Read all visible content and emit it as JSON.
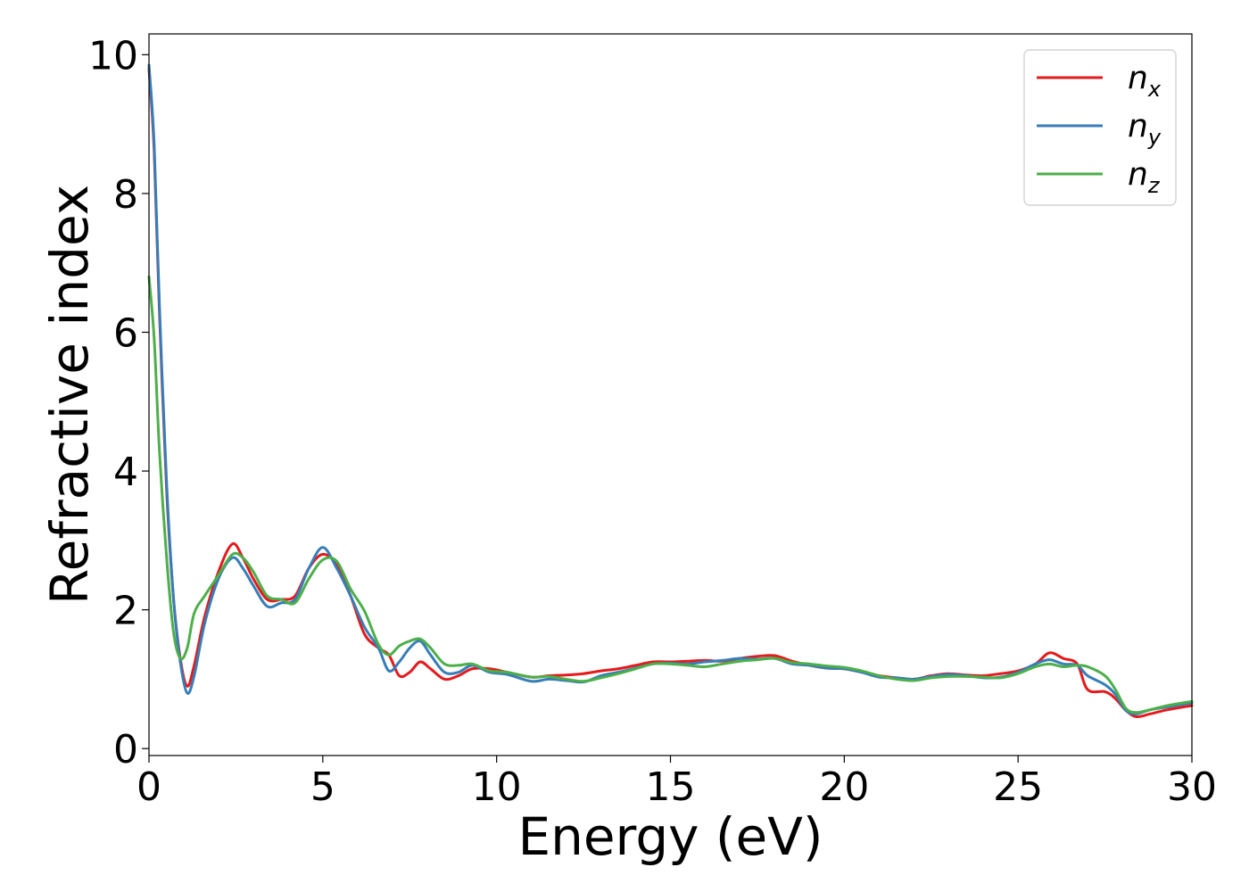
{
  "chart_data": {
    "type": "line",
    "xlabel": "Energy (eV)",
    "ylabel": "Refractive index",
    "xlim": [
      0,
      30
    ],
    "ylim": [
      -0.1,
      10.3
    ],
    "xticks": [
      0,
      5,
      10,
      15,
      20,
      25,
      30
    ],
    "xtick_labels": [
      "0",
      "5",
      "10",
      "15",
      "20",
      "25",
      "30"
    ],
    "yticks": [
      0,
      2,
      4,
      6,
      8,
      10
    ],
    "ytick_labels": [
      "0",
      "2",
      "4",
      "6",
      "8",
      "10"
    ],
    "grid": false,
    "legend_position": "top-right",
    "series": [
      {
        "name": "n_x",
        "label_base": "n",
        "label_sub": "x",
        "color": "#e41a1c",
        "points": [
          [
            0,
            9.8
          ],
          [
            0.15,
            8.6
          ],
          [
            0.3,
            6.3
          ],
          [
            0.5,
            3.8
          ],
          [
            0.7,
            2.2
          ],
          [
            0.9,
            1.3
          ],
          [
            1.1,
            0.9
          ],
          [
            1.3,
            1.2
          ],
          [
            1.6,
            1.9
          ],
          [
            2.0,
            2.55
          ],
          [
            2.4,
            2.95
          ],
          [
            2.7,
            2.75
          ],
          [
            3.0,
            2.45
          ],
          [
            3.4,
            2.15
          ],
          [
            3.8,
            2.15
          ],
          [
            4.2,
            2.2
          ],
          [
            4.6,
            2.6
          ],
          [
            5.0,
            2.8
          ],
          [
            5.4,
            2.65
          ],
          [
            5.8,
            2.2
          ],
          [
            6.2,
            1.65
          ],
          [
            6.6,
            1.45
          ],
          [
            6.9,
            1.35
          ],
          [
            7.2,
            1.05
          ],
          [
            7.5,
            1.1
          ],
          [
            7.8,
            1.25
          ],
          [
            8.1,
            1.15
          ],
          [
            8.5,
            1.0
          ],
          [
            8.9,
            1.05
          ],
          [
            9.3,
            1.15
          ],
          [
            9.8,
            1.15
          ],
          [
            10.3,
            1.1
          ],
          [
            11.0,
            1.03
          ],
          [
            11.5,
            1.05
          ],
          [
            12.0,
            1.06
          ],
          [
            12.5,
            1.08
          ],
          [
            13.0,
            1.12
          ],
          [
            13.5,
            1.15
          ],
          [
            14.0,
            1.2
          ],
          [
            14.5,
            1.25
          ],
          [
            15.0,
            1.25
          ],
          [
            15.5,
            1.26
          ],
          [
            16.0,
            1.27
          ],
          [
            16.5,
            1.26
          ],
          [
            17.0,
            1.3
          ],
          [
            17.5,
            1.33
          ],
          [
            18.0,
            1.34
          ],
          [
            18.5,
            1.26
          ],
          [
            19.0,
            1.2
          ],
          [
            19.5,
            1.16
          ],
          [
            20.0,
            1.15
          ],
          [
            20.5,
            1.1
          ],
          [
            21.0,
            1.05
          ],
          [
            21.5,
            1.02
          ],
          [
            22.0,
            1.0
          ],
          [
            22.5,
            1.05
          ],
          [
            23.0,
            1.08
          ],
          [
            23.5,
            1.06
          ],
          [
            24.0,
            1.05
          ],
          [
            24.5,
            1.08
          ],
          [
            25.0,
            1.12
          ],
          [
            25.5,
            1.22
          ],
          [
            25.9,
            1.38
          ],
          [
            26.3,
            1.3
          ],
          [
            26.7,
            1.22
          ],
          [
            27.0,
            0.85
          ],
          [
            27.5,
            0.82
          ],
          [
            27.8,
            0.72
          ],
          [
            28.1,
            0.55
          ],
          [
            28.4,
            0.46
          ],
          [
            28.8,
            0.5
          ],
          [
            29.3,
            0.56
          ],
          [
            30.0,
            0.62
          ]
        ]
      },
      {
        "name": "n_y",
        "label_base": "n",
        "label_sub": "y",
        "color": "#377eb8",
        "points": [
          [
            0,
            9.85
          ],
          [
            0.15,
            8.7
          ],
          [
            0.3,
            6.4
          ],
          [
            0.5,
            3.9
          ],
          [
            0.7,
            2.2
          ],
          [
            0.9,
            1.25
          ],
          [
            1.1,
            0.8
          ],
          [
            1.3,
            1.05
          ],
          [
            1.6,
            1.8
          ],
          [
            2.0,
            2.45
          ],
          [
            2.4,
            2.75
          ],
          [
            2.7,
            2.6
          ],
          [
            3.0,
            2.35
          ],
          [
            3.4,
            2.05
          ],
          [
            3.8,
            2.1
          ],
          [
            4.2,
            2.15
          ],
          [
            4.6,
            2.6
          ],
          [
            5.0,
            2.9
          ],
          [
            5.4,
            2.6
          ],
          [
            5.8,
            2.2
          ],
          [
            6.2,
            1.75
          ],
          [
            6.6,
            1.45
          ],
          [
            6.9,
            1.12
          ],
          [
            7.2,
            1.25
          ],
          [
            7.5,
            1.45
          ],
          [
            7.8,
            1.55
          ],
          [
            8.1,
            1.35
          ],
          [
            8.5,
            1.1
          ],
          [
            8.9,
            1.1
          ],
          [
            9.3,
            1.2
          ],
          [
            9.8,
            1.1
          ],
          [
            10.3,
            1.07
          ],
          [
            11.0,
            0.97
          ],
          [
            11.5,
            1.0
          ],
          [
            12.0,
            0.98
          ],
          [
            12.5,
            0.96
          ],
          [
            13.0,
            1.05
          ],
          [
            13.5,
            1.1
          ],
          [
            14.0,
            1.16
          ],
          [
            14.5,
            1.22
          ],
          [
            15.0,
            1.23
          ],
          [
            15.5,
            1.22
          ],
          [
            16.0,
            1.25
          ],
          [
            16.5,
            1.27
          ],
          [
            17.0,
            1.3
          ],
          [
            17.5,
            1.29
          ],
          [
            18.0,
            1.3
          ],
          [
            18.5,
            1.22
          ],
          [
            19.0,
            1.2
          ],
          [
            19.5,
            1.16
          ],
          [
            20.0,
            1.15
          ],
          [
            20.5,
            1.1
          ],
          [
            21.0,
            1.03
          ],
          [
            21.5,
            1.02
          ],
          [
            22.0,
            1.0
          ],
          [
            22.5,
            1.04
          ],
          [
            23.0,
            1.07
          ],
          [
            23.5,
            1.05
          ],
          [
            24.0,
            1.02
          ],
          [
            24.5,
            1.03
          ],
          [
            25.0,
            1.1
          ],
          [
            25.5,
            1.22
          ],
          [
            25.9,
            1.28
          ],
          [
            26.3,
            1.22
          ],
          [
            26.7,
            1.2
          ],
          [
            27.0,
            1.05
          ],
          [
            27.5,
            0.92
          ],
          [
            27.8,
            0.78
          ],
          [
            28.1,
            0.55
          ],
          [
            28.4,
            0.5
          ],
          [
            28.8,
            0.56
          ],
          [
            29.3,
            0.6
          ],
          [
            30.0,
            0.66
          ]
        ]
      },
      {
        "name": "n_z",
        "label_base": "n",
        "label_sub": "z",
        "color": "#4daf4a",
        "points": [
          [
            0,
            6.8
          ],
          [
            0.15,
            5.9
          ],
          [
            0.3,
            4.3
          ],
          [
            0.5,
            2.8
          ],
          [
            0.7,
            1.7
          ],
          [
            0.9,
            1.3
          ],
          [
            1.1,
            1.45
          ],
          [
            1.3,
            1.95
          ],
          [
            1.6,
            2.2
          ],
          [
            2.0,
            2.5
          ],
          [
            2.4,
            2.8
          ],
          [
            2.7,
            2.75
          ],
          [
            3.0,
            2.55
          ],
          [
            3.4,
            2.2
          ],
          [
            3.8,
            2.15
          ],
          [
            4.2,
            2.1
          ],
          [
            4.6,
            2.45
          ],
          [
            5.0,
            2.72
          ],
          [
            5.4,
            2.7
          ],
          [
            5.8,
            2.3
          ],
          [
            6.2,
            1.98
          ],
          [
            6.6,
            1.5
          ],
          [
            6.9,
            1.35
          ],
          [
            7.2,
            1.48
          ],
          [
            7.5,
            1.55
          ],
          [
            7.8,
            1.58
          ],
          [
            8.1,
            1.45
          ],
          [
            8.5,
            1.22
          ],
          [
            8.9,
            1.2
          ],
          [
            9.3,
            1.22
          ],
          [
            9.8,
            1.12
          ],
          [
            10.3,
            1.1
          ],
          [
            11.0,
            1.03
          ],
          [
            11.5,
            1.04
          ],
          [
            12.0,
            1.0
          ],
          [
            12.5,
            0.97
          ],
          [
            13.0,
            1.02
          ],
          [
            13.5,
            1.08
          ],
          [
            14.0,
            1.15
          ],
          [
            14.5,
            1.22
          ],
          [
            15.0,
            1.22
          ],
          [
            15.5,
            1.2
          ],
          [
            16.0,
            1.18
          ],
          [
            16.5,
            1.22
          ],
          [
            17.0,
            1.26
          ],
          [
            17.5,
            1.28
          ],
          [
            18.0,
            1.3
          ],
          [
            18.5,
            1.24
          ],
          [
            19.0,
            1.22
          ],
          [
            19.5,
            1.19
          ],
          [
            20.0,
            1.17
          ],
          [
            20.5,
            1.12
          ],
          [
            21.0,
            1.05
          ],
          [
            21.5,
            1.0
          ],
          [
            22.0,
            0.98
          ],
          [
            22.5,
            1.02
          ],
          [
            23.0,
            1.04
          ],
          [
            23.5,
            1.04
          ],
          [
            24.0,
            1.03
          ],
          [
            24.5,
            1.02
          ],
          [
            25.0,
            1.08
          ],
          [
            25.5,
            1.18
          ],
          [
            25.9,
            1.22
          ],
          [
            26.3,
            1.18
          ],
          [
            26.7,
            1.2
          ],
          [
            27.0,
            1.18
          ],
          [
            27.5,
            1.05
          ],
          [
            27.8,
            0.85
          ],
          [
            28.1,
            0.58
          ],
          [
            28.4,
            0.52
          ],
          [
            28.8,
            0.56
          ],
          [
            29.3,
            0.62
          ],
          [
            30.0,
            0.68
          ]
        ]
      }
    ]
  }
}
